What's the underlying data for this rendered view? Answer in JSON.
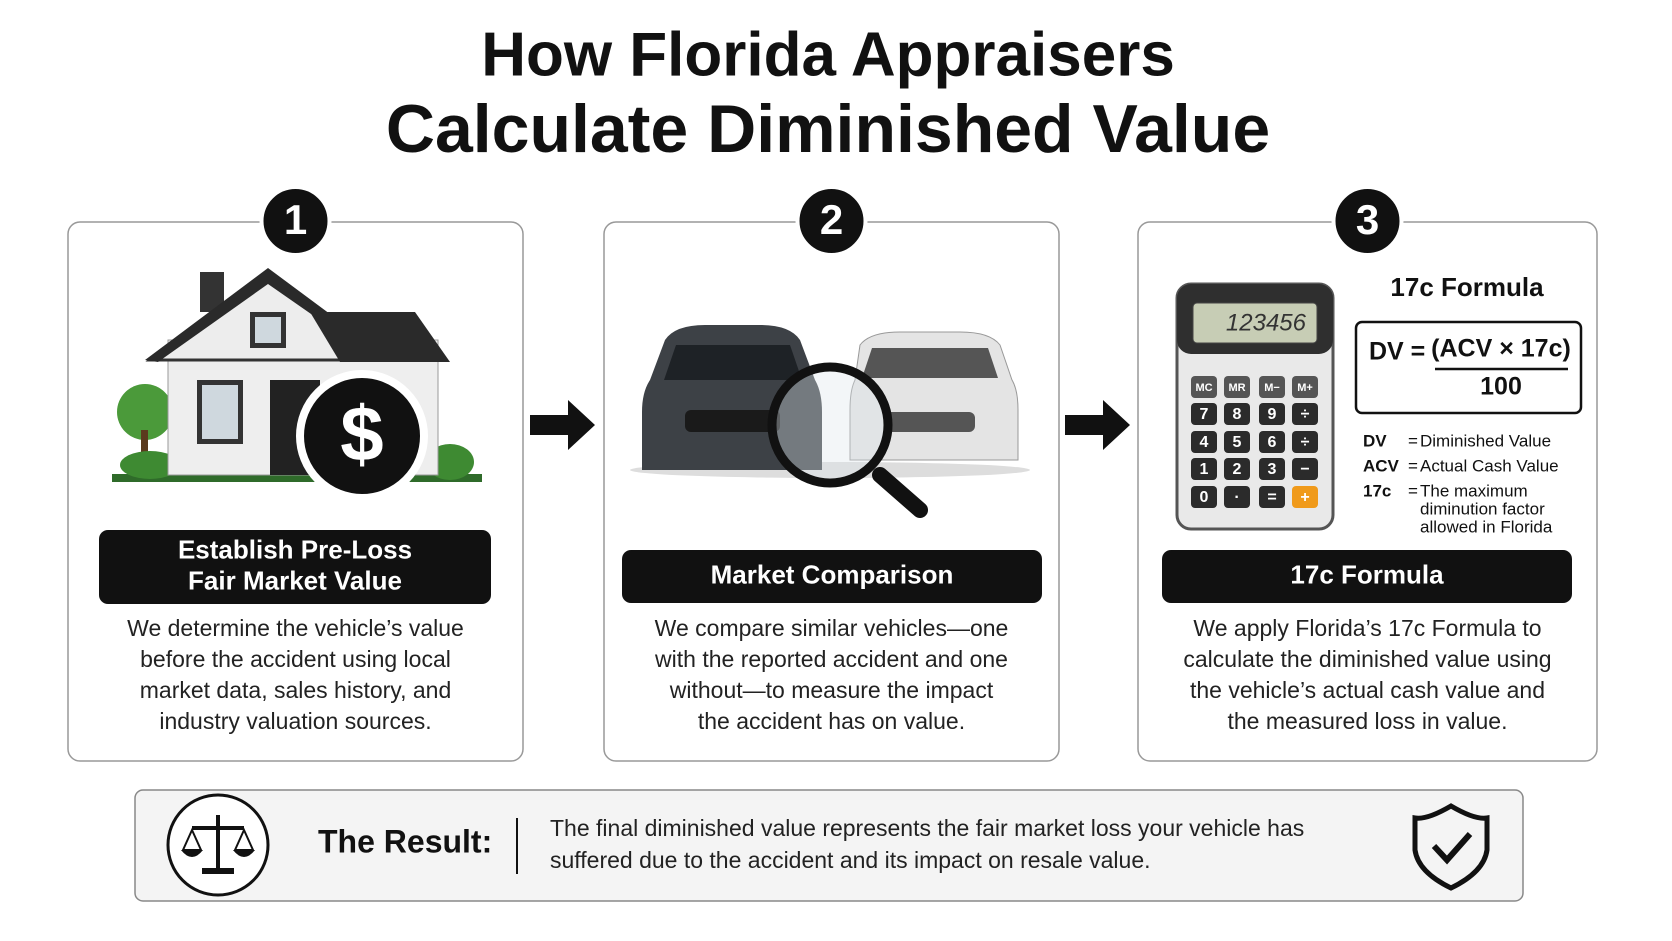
{
  "header": {
    "title": [
      "How Florida Appraisers",
      "Calculate Diminished Value"
    ]
  },
  "steps": [
    {
      "number": "1",
      "heading": [
        "Establish Pre-Loss",
        "Fair Market Value"
      ],
      "description": [
        "We determine the vehicle’s value",
        "before the accident using local",
        "market data, sales history, and",
        "industry valuation sources."
      ],
      "icon_text": "$"
    },
    {
      "number": "2",
      "heading": [
        "Market Comparison"
      ],
      "description": [
        "We compare similar vehicles—one",
        "with the reported accident and one",
        "without—to measure the impact",
        "the accident has on value."
      ]
    },
    {
      "number": "3",
      "heading": [
        "17c Formula"
      ],
      "description": [
        "We apply Florida’s 17c Formula to",
        "calculate the diminished value using",
        "the vehicle’s actual cash value and",
        "the measured loss in value."
      ],
      "calculator": {
        "display": "123456",
        "keys": [
          [
            "MC",
            "MR",
            "M−",
            "M+"
          ],
          [
            "7",
            "8",
            "9",
            "÷"
          ],
          [
            "4",
            "5",
            "6",
            "÷"
          ],
          [
            "1",
            "2",
            "3",
            "−"
          ],
          [
            "0",
            "·",
            "=",
            "+"
          ]
        ]
      },
      "formula": {
        "title": "17c Formula",
        "lhs": "DV =",
        "numerator": "(ACV × 17c)",
        "denominator": "100",
        "legend": [
          {
            "term": "DV",
            "eq": "=",
            "definition": [
              "Diminished Value"
            ]
          },
          {
            "term": "ACV",
            "eq": "=",
            "definition": [
              "Actual Cash Value"
            ]
          },
          {
            "term": "17c",
            "eq": "=",
            "definition": [
              "The maximum",
              "diminution factor",
              "allowed in Florida"
            ]
          }
        ]
      }
    }
  ],
  "result": {
    "label": "The Result:",
    "text": [
      "The final diminished value represents the fair market loss your vehicle has",
      "suffered due to the accident and its impact on resale value."
    ]
  }
}
